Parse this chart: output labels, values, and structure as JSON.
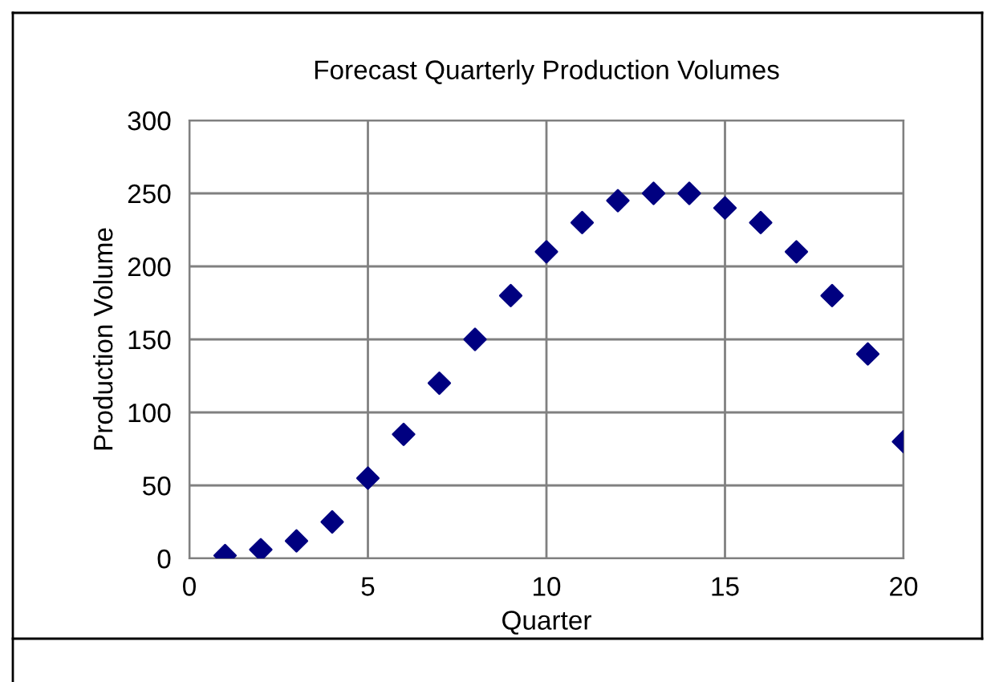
{
  "chart_data": {
    "type": "scatter",
    "title": "Forecast Quarterly Production Volumes",
    "xlabel": "Quarter",
    "ylabel": "Production Volume",
    "x": [
      1,
      2,
      3,
      4,
      5,
      6,
      7,
      8,
      9,
      10,
      11,
      12,
      13,
      14,
      15,
      16,
      17,
      18,
      19,
      20
    ],
    "series": [
      {
        "color": "#000080",
        "values": [
          2,
          6,
          12,
          25,
          55,
          85,
          120,
          150,
          180,
          210,
          230,
          245,
          250,
          250,
          240,
          230,
          210,
          180,
          140,
          80
        ]
      }
    ],
    "xlim": [
      0,
      20
    ],
    "xticks": [
      0,
      5,
      10,
      15,
      20
    ],
    "ylim": [
      0,
      300
    ],
    "yticks": [
      0,
      50,
      100,
      150,
      200,
      250,
      300
    ],
    "grid": true,
    "marker": "diamond",
    "legend": false
  }
}
